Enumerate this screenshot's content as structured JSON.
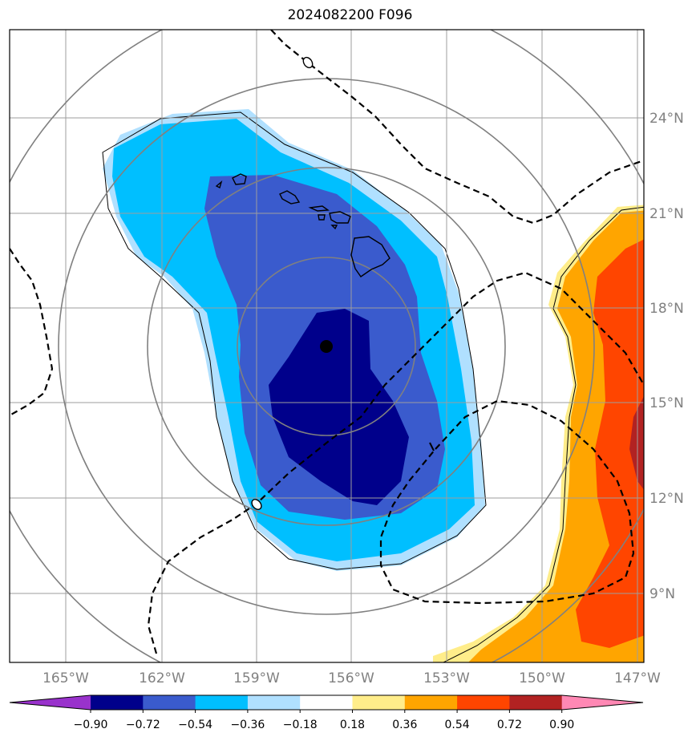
{
  "title": "2024082200 F096",
  "lon_labels": [
    "165°W",
    "162°W",
    "159°W",
    "156°W",
    "153°W",
    "150°W",
    "147°W"
  ],
  "lat_labels": [
    "24°N",
    "21°N",
    "18°N",
    "15°N",
    "12°N",
    "9°N"
  ],
  "colorbar": {
    "colors": [
      "#9932cc",
      "#00008b",
      "#3a5bcd",
      "#00bfff",
      "#b0e0ff",
      "#ffffff",
      "#ffed8a",
      "#ffa500",
      "#ff4500",
      "#b22222",
      "#ff88b4"
    ],
    "labels": [
      "−0.90",
      "−0.72",
      "−0.54",
      "−0.36",
      "−0.18",
      "0.18",
      "0.36",
      "0.54",
      "0.72",
      "0.90"
    ]
  },
  "contour_labels": {
    "a": "0",
    "b": "0",
    "c": "1"
  }
}
